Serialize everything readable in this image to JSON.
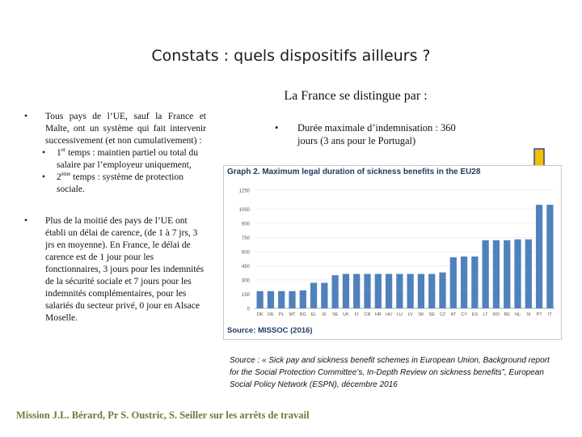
{
  "slide": {
    "title": "Constats : quels dispositifs ailleurs ?",
    "subtitle": "La France se distingue par :",
    "left_bullets": [
      "Tous pays de l’UE, sauf la France et Malte, ont un système qui fait intervenir successivement (et non cumulativement) :",
      "Plus de la moitié des pays de l’UE ont établi un délai de carence, (de 1 à 7 jrs, 3 jrs en moyenne). En France, le délai de carence est de 1 jour pour les fonctionnaires, 3 jours pour les indemnités de la sécurité sociale et 7 jours pour les indemnités complémentaires, pour les salariés du secteur privé, 0 jour en Alsace Moselle."
    ],
    "sub_bullets": [
      {
        "num": "1",
        "sup": "er",
        "text": " temps : maintien partiel ou total du salaire par l’employeur uniquement,"
      },
      {
        "num": "2",
        "sup": "ème",
        "text": " temps : système de protection sociale."
      }
    ],
    "right_bullet": "Durée maximale d’indemnisation : 360 jours (3 ans pour le Portugal)",
    "bullet_glyph": "•",
    "source_note": "Source : « Sick pay and sickness benefit schemes in European Union, Background report for the Social Protection Committee’s, In-Depth Review on sickness benefits”, European Social Policy Network (ESPN), décembre 2016",
    "footer": "Mission J.L. Bérard, Pr S. Oustric, S. Seiller sur les arrêts de travail",
    "highlight_arrow_icon": "down-arrow-icon",
    "colors": {
      "bar": "#4f81bd",
      "arrow_fill": "#f2c200",
      "arrow_stroke": "#2e4a8a",
      "chart_title": "#1f3b63",
      "footer": "#7a7436"
    }
  },
  "chart_data": {
    "type": "bar",
    "title": "Graph 2. Maximum legal duration of sickness benefits in the EU28",
    "source": "Source: MISSOC (2016)",
    "categories": [
      "DK",
      "DE",
      "PL",
      "MT",
      "BG",
      "EL",
      "IE",
      "SE",
      "UK",
      "FI",
      "CR",
      "HR",
      "HU",
      "LU",
      "LV",
      "SK",
      "SE",
      "CZ",
      "AT",
      "CY",
      "ES",
      "LT",
      "RO",
      "BE",
      "NL",
      "SI",
      "PT",
      "IT"
    ],
    "values": [
      182,
      182,
      182,
      182,
      190,
      270,
      270,
      350,
      364,
      364,
      364,
      364,
      364,
      364,
      364,
      364,
      364,
      380,
      540,
      548,
      548,
      720,
      720,
      720,
      730,
      730,
      1095,
      1095
    ],
    "yticks": [
      0,
      150,
      300,
      450,
      600,
      750,
      900,
      1050,
      1250
    ],
    "ylim": [
      0,
      1250
    ],
    "xlabel": "",
    "ylabel": ""
  }
}
